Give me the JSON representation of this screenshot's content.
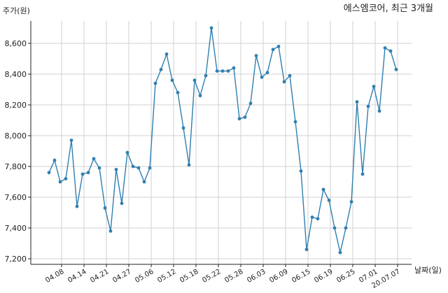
{
  "chart_data": {
    "type": "line",
    "title": "에스엠코어, 최근 3개월",
    "ylabel": "주가(원)",
    "xlabel": "날짜(일)",
    "ylim": [
      7200,
      8750
    ],
    "yticks": [
      7200,
      7400,
      7600,
      7800,
      8000,
      8200,
      8400,
      8600
    ],
    "ytick_labels": [
      "7,200",
      "7,400",
      "7,600",
      "7,800",
      "8,000",
      "8,200",
      "8,400",
      "8,600"
    ],
    "xticks": [
      "04.08",
      "04.14",
      "04.21",
      "04.27",
      "05.06",
      "05.12",
      "05.18",
      "05.22",
      "05.28",
      "06.03",
      "06.09",
      "06.15",
      "06.19",
      "06.25",
      "07.01",
      "20.07.07"
    ],
    "grid": true,
    "series": [
      {
        "values": [
          7760,
          7840,
          7700,
          7720,
          7970,
          7540,
          7750,
          7760,
          7850,
          7790,
          7530,
          7380,
          7780,
          7560,
          7890,
          7800,
          7790,
          7700,
          7790,
          8340,
          8430,
          8530,
          8360,
          8280,
          8050,
          7810,
          8360,
          8260,
          8390,
          8700,
          8420,
          8420,
          8420,
          8440,
          8110,
          8120,
          8210,
          8520,
          8380,
          8410,
          8560,
          8580,
          8350,
          8390,
          8090,
          7770,
          7260,
          7470,
          7460,
          7650,
          7580,
          7400,
          7240,
          7400,
          7570,
          8220,
          7750,
          8190,
          8320,
          8160,
          8570,
          8550,
          8430
        ]
      }
    ]
  },
  "style": {
    "line_color": "#2f7fb0",
    "grid_color": "#d0d0d0"
  }
}
